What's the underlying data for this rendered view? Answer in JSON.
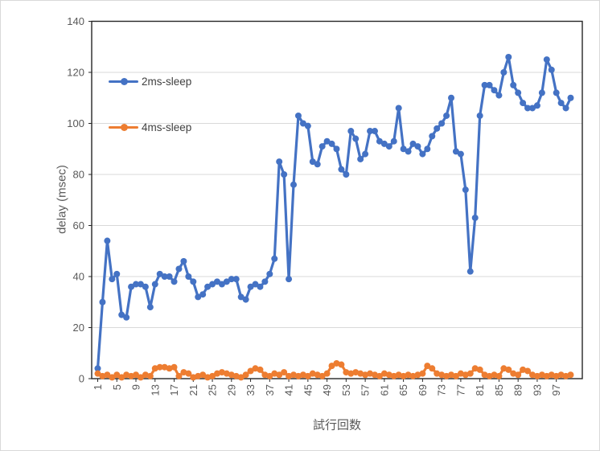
{
  "chart_data": {
    "type": "line",
    "title": "",
    "xlabel": "試行回数",
    "ylabel": "delay (msec)",
    "ylim": [
      0,
      140
    ],
    "n_points": 100,
    "grid": true,
    "legend_position": "inside-top-left",
    "y_ticks": [
      0,
      20,
      40,
      60,
      80,
      100,
      120,
      140
    ],
    "x_tick_labels": [
      1,
      5,
      9,
      13,
      17,
      21,
      25,
      29,
      33,
      37,
      41,
      45,
      49,
      53,
      57,
      61,
      65,
      69,
      73,
      77,
      81,
      85,
      89,
      93,
      97
    ],
    "series": [
      {
        "name": "2ms-sleep",
        "color": "#4472C4",
        "values": [
          4,
          30,
          54,
          39,
          41,
          25,
          24,
          36,
          37,
          37,
          36,
          28,
          37,
          41,
          40,
          40,
          38,
          43,
          46,
          40,
          38,
          32,
          33,
          36,
          37,
          38,
          37,
          38,
          39,
          39,
          32,
          31,
          36,
          37,
          36,
          38,
          41,
          47,
          85,
          80,
          39,
          76,
          103,
          100,
          99,
          85,
          84,
          91,
          93,
          92,
          90,
          82,
          80,
          97,
          94,
          86,
          88,
          97,
          97,
          93,
          92,
          91,
          93,
          106,
          90,
          89,
          92,
          91,
          88,
          90,
          95,
          98,
          100,
          103,
          110,
          89,
          88,
          74,
          42,
          63,
          103,
          115,
          115,
          113,
          111,
          120,
          126,
          115,
          112,
          108,
          106,
          106,
          107,
          112,
          125,
          121,
          112,
          108,
          106,
          110
        ]
      },
      {
        "name": "4ms-sleep",
        "color": "#ED7D31",
        "values": [
          2,
          1,
          1.5,
          0.5,
          1.5,
          0.5,
          1.5,
          1,
          1.5,
          0.5,
          1.5,
          1,
          4,
          4.5,
          4.5,
          4,
          4.5,
          1,
          2.5,
          2,
          0.5,
          1,
          1.5,
          0.5,
          1,
          2,
          2.5,
          2,
          1.5,
          1,
          0.5,
          1.5,
          3,
          4,
          3.5,
          1.5,
          1,
          2,
          1.5,
          2.5,
          1,
          1.5,
          1,
          1.5,
          1,
          2,
          1.5,
          1,
          2,
          5,
          6,
          5.5,
          2.5,
          2,
          2.5,
          2,
          1.5,
          2,
          1.5,
          1,
          2,
          1.5,
          1,
          1.5,
          1,
          1.5,
          1,
          1.5,
          2,
          5,
          4,
          2,
          1.5,
          1,
          1.5,
          1,
          2,
          1.5,
          2,
          4,
          3.5,
          1.5,
          1,
          1.5,
          1,
          4,
          3.5,
          2,
          1.5,
          3.5,
          3,
          1.5,
          1,
          1.5,
          1,
          1.5,
          1,
          1.5,
          1,
          1.5
        ]
      }
    ],
    "colors": {
      "grid": "#D9D9D9",
      "axis": "#262626",
      "tick_text": "#595959",
      "legend_text": "#404040",
      "background": "#FFFFFF",
      "frame_border": "#D9D9D9"
    }
  }
}
